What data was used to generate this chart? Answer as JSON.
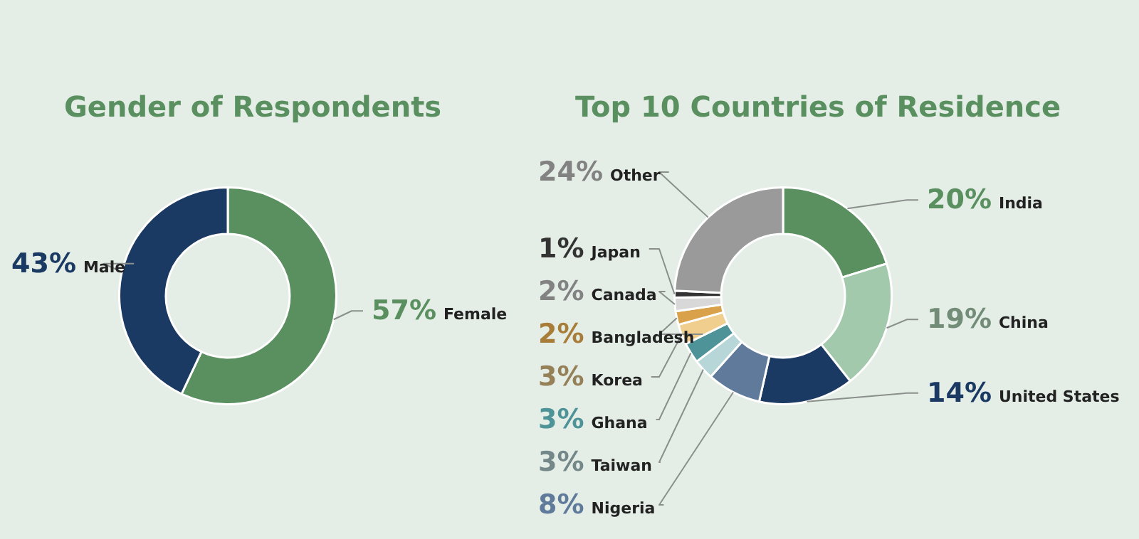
{
  "chart_data": [
    {
      "type": "donut",
      "title": "Gender of Respondents",
      "categories": [
        "Female",
        "Male"
      ],
      "values": [
        57,
        43
      ],
      "colors": [
        "#5a9060",
        "#1b3a63"
      ],
      "value_labels": [
        "57%",
        "43%"
      ]
    },
    {
      "type": "donut",
      "title": "Top 10 Countries of Residence",
      "categories": [
        "India",
        "China",
        "United States",
        "Nigeria",
        "Taiwan",
        "Ghana",
        "Korea",
        "Bangladesh",
        "Canada",
        "Japan",
        "Other"
      ],
      "values": [
        20,
        19,
        14,
        8,
        3,
        3,
        3,
        2,
        2,
        1,
        24
      ],
      "colors": [
        "#5a9060",
        "#a3c9ac",
        "#1b3a63",
        "#5f7a9a",
        "#b7d6d8",
        "#4e9398",
        "#f0ce8e",
        "#d9a24a",
        "#d8d8d8",
        "#333333",
        "#9a9a9a"
      ],
      "value_labels": [
        "20%",
        "19%",
        "14%",
        "8%",
        "3%",
        "3%",
        "3%",
        "2%",
        "2%",
        "1%",
        "24%"
      ]
    }
  ]
}
